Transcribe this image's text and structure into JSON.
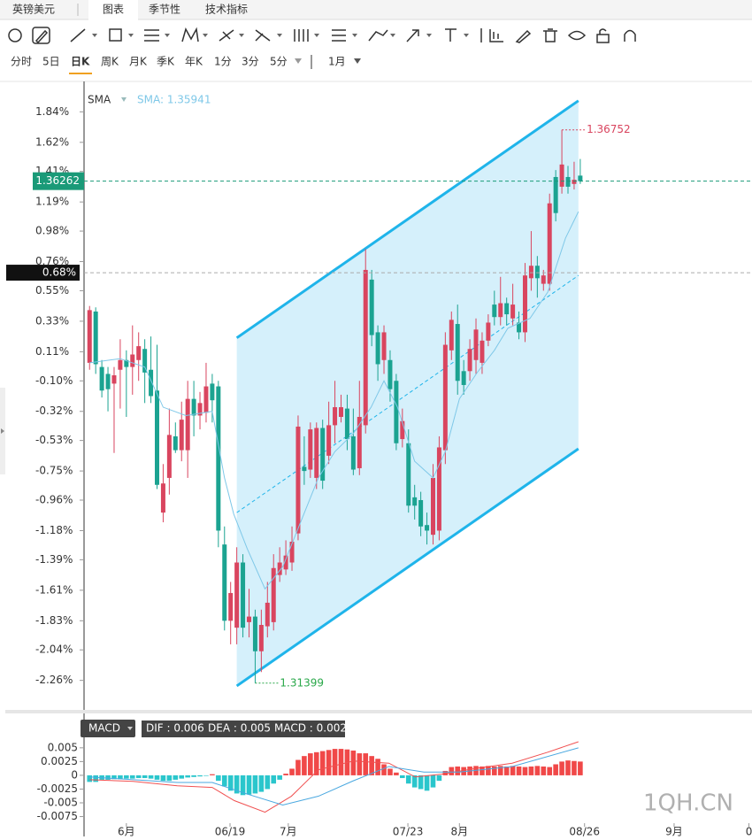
{
  "header": {
    "symbol": "英镑美元",
    "tabs": [
      "图表",
      "季节性",
      "技术指标"
    ]
  },
  "periods": [
    "分时",
    "5日",
    "日K",
    "周K",
    "月K",
    "季K",
    "年K",
    "1分",
    "3分",
    "5分",
    "1月"
  ],
  "chart_data": {
    "type": "candlestick",
    "xlim": [
      -0.9,
      108
    ],
    "xticks": [
      {
        "value": 6.0,
        "label": "6月"
      },
      {
        "value": 22.9,
        "label": "06/19"
      },
      {
        "value": 32.4,
        "label": "7月"
      },
      {
        "value": 51.9,
        "label": "07/23"
      },
      {
        "value": 60.3,
        "label": "8月"
      },
      {
        "value": 80.7,
        "label": "08/26"
      },
      {
        "value": 95.3,
        "label": "9月"
      },
      {
        "value": 107.5,
        "label": "0"
      }
    ],
    "ylim": [
      -2.46,
      2.04
    ],
    "yticks": [
      {
        "value": 1.84,
        "label": "1.84%"
      },
      {
        "value": 1.62,
        "label": "1.62%"
      },
      {
        "value": 1.41,
        "label": "1.41%"
      },
      {
        "value": 1.19,
        "label": "1.19%"
      },
      {
        "value": 0.98,
        "label": "0.98%"
      },
      {
        "value": 0.76,
        "label": "0.76%"
      },
      {
        "value": 0.55,
        "label": "0.55%"
      },
      {
        "value": 0.33,
        "label": "0.33%"
      },
      {
        "value": 0.11,
        "label": "0.11%"
      },
      {
        "value": -0.1,
        "label": "-0.10%"
      },
      {
        "value": -0.32,
        "label": "-0.32%"
      },
      {
        "value": -0.53,
        "label": "-0.53%"
      },
      {
        "value": -0.75,
        "label": "-0.75%"
      },
      {
        "value": -0.96,
        "label": "-0.96%"
      },
      {
        "value": -1.18,
        "label": "-1.18%"
      },
      {
        "value": -1.39,
        "label": "-1.39%"
      },
      {
        "value": -1.61,
        "label": "-1.61%"
      },
      {
        "value": -1.83,
        "label": "-1.83%"
      },
      {
        "value": -2.04,
        "label": "-2.04%"
      },
      {
        "value": -2.26,
        "label": "-2.26%"
      }
    ],
    "up_color": "#d9455f",
    "down_color": "#1ba391",
    "candles": [
      [
        0.03,
        0.44,
        -0.02,
        0.41
      ],
      [
        0.4,
        0.43,
        -0.05,
        0.02
      ],
      [
        0.0,
        0.05,
        -0.22,
        -0.17
      ],
      [
        -0.05,
        0.0,
        -0.32,
        -0.16
      ],
      [
        -0.12,
        0.0,
        -0.62,
        -0.06
      ],
      [
        -0.02,
        0.2,
        -0.3,
        0.05
      ],
      [
        0.05,
        0.12,
        -0.36,
        0.0
      ],
      [
        0.0,
        0.3,
        -0.2,
        0.09
      ],
      [
        0.05,
        0.25,
        -0.1,
        0.15
      ],
      [
        0.13,
        0.2,
        -0.26,
        -0.04
      ],
      [
        -0.02,
        0.22,
        -0.26,
        -0.21
      ],
      [
        -0.17,
        0.16,
        -0.88,
        -0.85
      ],
      [
        -1.05,
        -0.7,
        -1.12,
        -0.84
      ],
      [
        -0.8,
        -0.3,
        -0.92,
        -0.49
      ],
      [
        -0.5,
        -0.4,
        -0.62,
        -0.6
      ],
      [
        -0.6,
        -0.25,
        -0.68,
        -0.38
      ],
      [
        -0.6,
        -0.1,
        -0.8,
        -0.23
      ],
      [
        -0.23,
        -0.1,
        -0.5,
        -0.35
      ],
      [
        -0.35,
        -0.18,
        -0.45,
        -0.26
      ],
      [
        -0.33,
        0.03,
        -0.4,
        -0.14
      ],
      [
        -0.12,
        -0.05,
        -0.4,
        -0.24
      ],
      [
        -0.14,
        -0.1,
        -1.3,
        -1.18
      ],
      [
        -1.28,
        -1.15,
        -1.9,
        -1.83
      ],
      [
        -1.83,
        -1.55,
        -2.0,
        -1.63
      ],
      [
        -1.88,
        -1.3,
        -2.0,
        -1.41
      ],
      [
        -1.41,
        -1.35,
        -1.95,
        -1.88
      ],
      [
        -1.84,
        -1.6,
        -1.95,
        -1.8
      ],
      [
        -1.8,
        -1.75,
        -2.28,
        -2.05
      ],
      [
        -2.05,
        -1.75,
        -2.2,
        -1.86
      ],
      [
        -1.87,
        -1.55,
        -1.95,
        -1.7
      ],
      [
        -1.84,
        -1.35,
        -1.9,
        -1.45
      ],
      [
        -1.5,
        -1.3,
        -1.55,
        -1.41
      ],
      [
        -1.46,
        -1.25,
        -1.5,
        -1.36
      ],
      [
        -1.41,
        -1.15,
        -1.47,
        -1.26
      ],
      [
        -1.2,
        -0.35,
        -1.25,
        -0.43
      ],
      [
        -0.72,
        -0.5,
        -0.85,
        -0.75
      ],
      [
        -0.74,
        -0.4,
        -0.8,
        -0.45
      ],
      [
        -0.8,
        -0.4,
        -0.88,
        -0.44
      ],
      [
        -0.44,
        -0.38,
        -0.88,
        -0.82
      ],
      [
        -0.64,
        -0.25,
        -0.7,
        -0.42
      ],
      [
        -0.42,
        -0.1,
        -0.55,
        -0.29
      ],
      [
        -0.36,
        -0.2,
        -0.4,
        -0.29
      ],
      [
        -0.3,
        -0.2,
        -0.6,
        -0.52
      ],
      [
        -0.5,
        -0.3,
        -0.78,
        -0.74
      ],
      [
        -0.73,
        -0.1,
        -0.78,
        -0.36
      ],
      [
        -0.42,
        0.85,
        -0.48,
        0.7
      ],
      [
        0.63,
        0.7,
        0.15,
        0.23
      ],
      [
        0.25,
        0.3,
        -0.1,
        0.02
      ],
      [
        0.05,
        0.3,
        -0.05,
        0.25
      ],
      [
        0.05,
        0.12,
        -0.25,
        -0.16
      ],
      [
        -0.1,
        -0.05,
        -0.6,
        -0.55
      ],
      [
        -0.52,
        -0.3,
        -0.58,
        -0.39
      ],
      [
        -0.55,
        -0.45,
        -1.05,
        -1.0
      ],
      [
        -0.94,
        -0.85,
        -1.1,
        -1.0
      ],
      [
        -0.96,
        -0.9,
        -1.22,
        -1.15
      ],
      [
        -1.14,
        -1.05,
        -1.28,
        -1.18
      ],
      [
        -1.21,
        -0.7,
        -1.28,
        -0.8
      ],
      [
        -1.18,
        -0.5,
        -1.25,
        -0.58
      ],
      [
        -0.6,
        0.25,
        -0.7,
        0.16
      ],
      [
        0.12,
        0.4,
        0.05,
        0.34
      ],
      [
        0.31,
        0.45,
        -0.2,
        -0.1
      ],
      [
        -0.03,
        0.05,
        -0.2,
        -0.13
      ],
      [
        -0.03,
        0.2,
        -0.1,
        0.13
      ],
      [
        0.05,
        0.35,
        -0.05,
        0.27
      ],
      [
        0.03,
        0.25,
        -0.05,
        0.19
      ],
      [
        0.19,
        0.38,
        0.15,
        0.32
      ],
      [
        0.45,
        0.55,
        0.3,
        0.36
      ],
      [
        0.36,
        0.65,
        0.3,
        0.46
      ],
      [
        0.46,
        0.5,
        0.3,
        0.38
      ],
      [
        0.35,
        0.6,
        0.3,
        0.45
      ],
      [
        0.32,
        0.4,
        0.2,
        0.25
      ],
      [
        0.25,
        0.75,
        0.18,
        0.66
      ],
      [
        0.64,
        0.98,
        0.55,
        0.73
      ],
      [
        0.73,
        0.8,
        0.5,
        0.64
      ],
      [
        0.6,
        0.7,
        0.55,
        0.66
      ],
      [
        0.6,
        1.25,
        0.55,
        1.18
      ],
      [
        1.37,
        1.42,
        1.05,
        1.11
      ],
      [
        1.3,
        1.71,
        1.25,
        1.46
      ],
      [
        1.37,
        1.45,
        1.25,
        1.3
      ],
      [
        1.32,
        1.48,
        1.28,
        1.35
      ],
      [
        1.38,
        1.5,
        1.32,
        1.34
      ]
    ],
    "sma": {
      "name": "SMA",
      "value_label": "SMA: 1.35941",
      "color": "#7fc8e8",
      "x": [
        0,
        5,
        9,
        12,
        15.7,
        20,
        22,
        23.5,
        25.7,
        28.6,
        31.5,
        34.4,
        37.3,
        40,
        43,
        45.9,
        48,
        50.2,
        53,
        56,
        58,
        60.3,
        63.2,
        66,
        68.2,
        71.8,
        74.7,
        77.6,
        79.7
      ],
      "values": [
        0.03,
        0.06,
        0.0,
        -0.29,
        -0.35,
        -0.32,
        -0.8,
        -1.06,
        -1.31,
        -1.6,
        -1.44,
        -1.12,
        -0.8,
        -0.61,
        -0.48,
        -0.29,
        -0.1,
        -0.29,
        -0.68,
        -0.8,
        -0.61,
        -0.23,
        -0.04,
        0.12,
        0.28,
        0.35,
        0.54,
        0.93,
        1.12
      ]
    },
    "channel": {
      "color": "#1fb4ea",
      "fill": "#d5f0fb",
      "x": [
        24,
        79.7
      ],
      "upper": [
        0.21,
        1.92
      ],
      "middle": [
        -1.05,
        0.66
      ],
      "lower": [
        -2.3,
        -0.59
      ]
    },
    "last_price": {
      "label": "1.36262",
      "value": 1.34,
      "color": "#1a9a78"
    },
    "crosshair": {
      "label": "0.68%",
      "value": 0.68
    },
    "high_mark": {
      "label": "1.36752",
      "x": 77,
      "value": 1.71,
      "color": "#d9455f"
    },
    "low_mark": {
      "label": "1.31399",
      "x": 27,
      "value": -2.28,
      "color": "#2aa84a"
    }
  },
  "macd": {
    "type": "bar",
    "name": "MACD",
    "legend": [
      "DIF : 0.006",
      "DEA : 0.005",
      "MACD : 0.002"
    ],
    "ylim": [
      -0.0087,
      0.0098
    ],
    "yticks": [
      0.005,
      0.0025,
      0,
      -0.0025,
      -0.005,
      -0.0075
    ],
    "up_color": "#f04848",
    "down_color": "#2ac6cc",
    "histogram": [
      -0.0012,
      -0.0012,
      -0.0008,
      -0.0008,
      -0.0007,
      -0.0007,
      -0.0006,
      -0.0006,
      -0.0005,
      -0.0005,
      -0.0006,
      -0.0008,
      -0.001,
      -0.001,
      -0.0008,
      -0.0006,
      -0.0004,
      -0.0003,
      -0.0002,
      -0.0001,
      0.0002,
      -0.001,
      -0.002,
      -0.0028,
      -0.0033,
      -0.0036,
      -0.0035,
      -0.0033,
      -0.003,
      -0.0025,
      -0.0015,
      -0.0008,
      0.0003,
      0.0012,
      0.0028,
      0.0035,
      0.004,
      0.0042,
      0.0044,
      0.0046,
      0.0048,
      0.0048,
      0.0047,
      0.0045,
      0.004,
      0.004,
      0.0035,
      0.003,
      0.002,
      0.0012,
      0.0005,
      -0.0005,
      -0.0015,
      -0.0022,
      -0.0025,
      -0.0028,
      -0.0022,
      -0.001,
      0.0008,
      0.0015,
      0.0016,
      0.0015,
      0.0016,
      0.0017,
      0.0016,
      0.0017,
      0.0016,
      0.0017,
      0.0016,
      0.0017,
      0.0016,
      0.0015,
      0.0016,
      0.0017,
      0.0016,
      0.0015,
      0.002,
      0.0025,
      0.0027,
      0.0026,
      0.0025
    ],
    "series": [
      {
        "name": "DIF",
        "color": "#f05050",
        "x": [
          0,
          7.1,
          14.3,
          20,
          23.6,
          28.6,
          32.9,
          37.3,
          43,
          48.8,
          53.1,
          57.4,
          63.2,
          68.9,
          74.7,
          79.7
        ],
        "values": [
          -0.0008,
          -0.0011,
          -0.0019,
          -0.0022,
          -0.0046,
          -0.0067,
          -0.0038,
          0.001,
          0.0026,
          0.0022,
          -0.0003,
          0.0002,
          0.0013,
          0.0022,
          0.0042,
          0.0061
        ]
      },
      {
        "name": "DEA",
        "color": "#4aa8e0",
        "x": [
          0,
          14.3,
          20,
          25.7,
          31.5,
          37.3,
          43,
          48.8,
          54.5,
          60.3,
          68.9,
          79.7
        ],
        "values": [
          -0.0003,
          -0.0013,
          -0.0013,
          -0.0034,
          -0.0054,
          -0.0038,
          -0.001,
          0.0016,
          0.0006,
          0.0006,
          0.0016,
          0.005
        ]
      }
    ]
  },
  "watermark": "1QH.CN"
}
